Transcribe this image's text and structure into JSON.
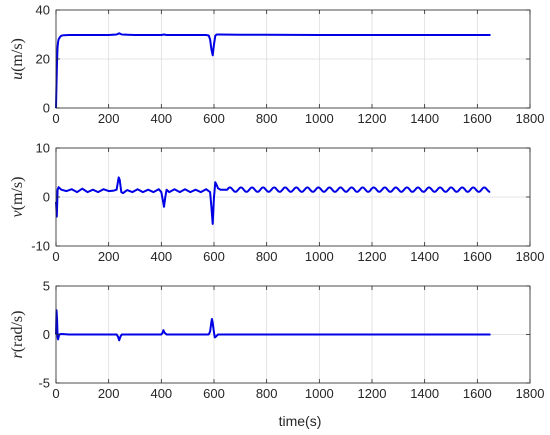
{
  "chart_data": [
    {
      "type": "line",
      "var": "u",
      "unit": "(m/s)",
      "xlim": [
        0,
        1800
      ],
      "ylim": [
        0,
        40
      ],
      "xticks": [
        "0",
        "200",
        "400",
        "600",
        "800",
        "1000",
        "1200",
        "1400",
        "1600",
        "1800"
      ],
      "yticks": [
        "0",
        "20",
        "40"
      ],
      "grid": true,
      "color": "#0000e6",
      "series": [
        {
          "x": [
            0,
            2,
            4,
            6,
            8,
            10,
            15,
            20,
            30,
            50,
            100,
            200,
            230,
            240,
            250,
            300,
            400,
            410,
            420,
            500,
            570,
            580,
            585,
            590,
            595,
            600,
            605,
            610,
            620,
            700,
            800,
            1000,
            1200,
            1400,
            1600,
            1650
          ],
          "y": [
            0,
            10,
            20,
            25,
            27,
            28,
            29,
            29.5,
            29.7,
            29.8,
            29.8,
            29.8,
            30,
            30.5,
            30,
            29.8,
            29.8,
            30,
            29.8,
            29.8,
            29.8,
            29.6,
            28,
            24,
            21.5,
            26,
            29.5,
            30,
            30,
            29.9,
            29.9,
            29.8,
            29.8,
            29.8,
            29.8,
            29.8
          ]
        }
      ]
    },
    {
      "type": "line",
      "var": "v",
      "unit": "(m/s)",
      "xlim": [
        0,
        1800
      ],
      "ylim": [
        -10,
        10
      ],
      "xticks": [
        "0",
        "200",
        "400",
        "600",
        "800",
        "1000",
        "1200",
        "1400",
        "1600",
        "1800"
      ],
      "yticks": [
        "-10",
        "0",
        "10"
      ],
      "grid": true,
      "color": "#0000e6",
      "series": [
        {
          "x": [
            0,
            3,
            6,
            10,
            20,
            40,
            60,
            80,
            100,
            120,
            140,
            160,
            180,
            200,
            220,
            230,
            238,
            242,
            248,
            255,
            270,
            290,
            310,
            330,
            350,
            370,
            390,
            400,
            405,
            410,
            415,
            420,
            430,
            450,
            470,
            490,
            510,
            530,
            550,
            570,
            585,
            590,
            595,
            600,
            605,
            610,
            615,
            625,
            650
          ],
          "y": [
            -1,
            -4,
            1.5,
            2,
            1.5,
            1.2,
            1.6,
            1,
            1.7,
            1,
            1.5,
            1,
            1.6,
            1.2,
            1.3,
            1.5,
            4,
            3.5,
            1,
            0.8,
            1.4,
            1,
            1.6,
            1,
            1.5,
            1,
            1.6,
            1,
            -0.5,
            -2,
            0,
            1.5,
            1,
            1.6,
            1,
            1.6,
            1,
            1.5,
            1,
            1.6,
            1,
            -2,
            -5.5,
            0,
            3,
            2.5,
            1.8,
            1.5,
            1.5
          ]
        }
      ],
      "oscillation": {
        "x_start": 650,
        "x_end": 1650,
        "mean": 1.5,
        "amplitude": 0.45,
        "period": 42
      }
    },
    {
      "type": "line",
      "var": "r",
      "unit": "(rad/s)",
      "xlim": [
        0,
        1800
      ],
      "ylim": [
        -5,
        5
      ],
      "xticks": [
        "0",
        "200",
        "400",
        "600",
        "800",
        "1000",
        "1200",
        "1400",
        "1600",
        "1800"
      ],
      "yticks": [
        "-5",
        "0",
        "5"
      ],
      "grid": true,
      "color": "#0000e6",
      "series": [
        {
          "x": [
            0,
            2,
            4,
            6,
            8,
            12,
            20,
            50,
            100,
            200,
            230,
            235,
            240,
            245,
            250,
            300,
            400,
            405,
            408,
            412,
            420,
            500,
            580,
            585,
            590,
            592,
            595,
            600,
            603,
            608,
            615,
            650,
            800,
            1000,
            1200,
            1400,
            1650
          ],
          "y": [
            0,
            2.5,
            1.5,
            -0.3,
            -0.5,
            0,
            0.05,
            0,
            0,
            0,
            0,
            -0.2,
            -0.6,
            -0.2,
            0,
            0,
            0,
            0.2,
            0.45,
            0.2,
            0,
            0,
            0,
            0.3,
            1.3,
            1.6,
            1.2,
            0.2,
            -0.3,
            -0.2,
            0,
            0,
            0,
            0,
            0,
            0,
            0
          ]
        }
      ]
    }
  ],
  "xlabel": "time(s)"
}
